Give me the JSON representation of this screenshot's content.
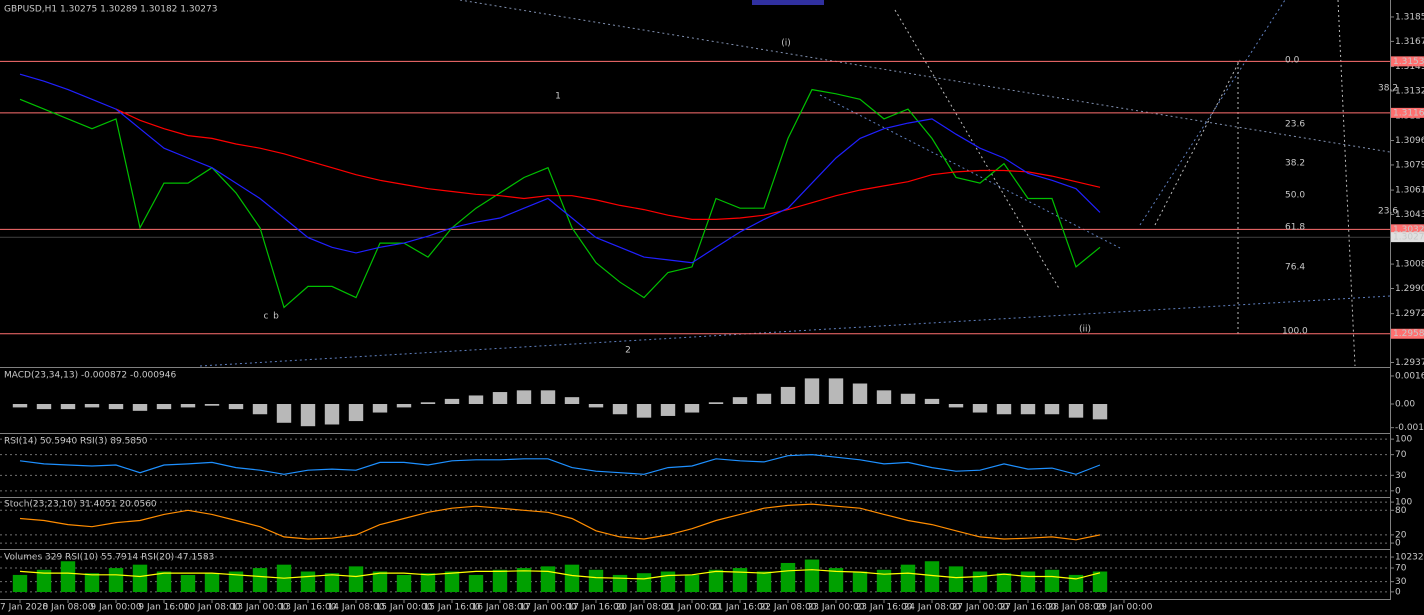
{
  "chart_data": [
    {
      "type": "line",
      "title": "GBPUSD,H1  1.30275 1.30289 1.30182 1.30273",
      "categories": [
        "7 Jan 2020",
        null,
        "8 Jan 08:00",
        null,
        "9 Jan 00:00",
        null,
        "9 Jan 16:00",
        null,
        "10 Jan 08:00",
        null,
        "13 Jan 00:00",
        null,
        "13 Jan 16:00",
        null,
        "14 Jan 08:00",
        null,
        "15 Jan 00:00",
        null,
        "15 Jan 16:00",
        null,
        "16 Jan 08:00",
        null,
        "17 Jan 00:00",
        null,
        "17 Jan 16:00",
        null,
        "20 Jan 08:00",
        null,
        "21 Jan 00:00",
        null,
        "21 Jan 16:00",
        null,
        "22 Jan 08:00",
        null,
        "23 Jan 00:00",
        null,
        "23 Jan 16:00",
        null,
        "24 Jan 08:00",
        null,
        "27 Jan 00:00",
        null,
        "27 Jan 16:00",
        null,
        "28 Jan 08:00",
        null,
        "29 Jan 00:00"
      ],
      "series": [
        {
          "color": "#00c000",
          "values": [
            1.3126,
            1.3119,
            1.3112,
            1.3105,
            1.3112,
            1.3034,
            1.3066,
            1.3066,
            1.3077,
            1.3059,
            1.3034,
            1.2977,
            1.2992,
            1.2992,
            1.2984,
            1.3023,
            1.3023,
            1.3013,
            1.3034,
            1.3048,
            1.3059,
            1.307,
            1.3077,
            1.3034,
            1.3009,
            1.2995,
            1.2984,
            1.3002,
            1.3006,
            1.3055,
            1.3048,
            1.3048,
            1.3098,
            1.3133,
            1.313,
            1.3126,
            1.3112,
            1.3119,
            1.3098,
            1.307,
            1.3066,
            1.308,
            1.3055,
            1.3055,
            1.3006,
            1.302,
            null
          ]
        },
        {
          "color": "#ff0000",
          "values": [
            null,
            null,
            null,
            null,
            1.3119,
            1.3111,
            1.3105,
            1.31,
            1.3098,
            1.3094,
            1.3091,
            1.3087,
            1.3082,
            1.3077,
            1.3072,
            1.3068,
            1.3065,
            1.3062,
            1.306,
            1.3058,
            1.3057,
            1.3055,
            1.3057,
            1.3057,
            1.3054,
            1.305,
            1.3047,
            1.3043,
            1.304,
            1.304,
            1.3041,
            1.3043,
            1.3047,
            1.3052,
            1.3057,
            1.3061,
            1.3064,
            1.3067,
            1.3072,
            1.3074,
            1.3075,
            1.3075,
            1.3074,
            1.3071,
            1.3067,
            1.3063,
            null
          ]
        },
        {
          "color": "#2020ff",
          "values": [
            1.3144,
            1.3139,
            1.3133,
            1.3126,
            1.3119,
            1.3105,
            1.3091,
            1.3084,
            1.3077,
            1.3066,
            1.3055,
            1.3041,
            1.3027,
            1.302,
            1.3016,
            1.302,
            1.3023,
            1.3028,
            1.3034,
            1.3038,
            1.3041,
            1.3048,
            1.3055,
            1.3041,
            1.3027,
            1.302,
            1.3013,
            1.3011,
            1.3009,
            1.302,
            1.3031,
            1.304,
            1.3048,
            1.3066,
            1.3084,
            1.3098,
            1.3105,
            1.3109,
            1.3112,
            1.3101,
            1.3091,
            1.3084,
            1.3073,
            1.3068,
            1.3062,
            1.3045,
            null
          ]
        }
      ],
      "ylim": [
        1.2935,
        1.3195
      ],
      "yticks": [
        {
          "value": 1.3185,
          "label": "1.31850"
        },
        1.31675,
        1.31495,
        {
          "value": 1.3132,
          "label": "1.31320"
        },
        {
          "value": 1.3114,
          "label": "1.31140"
        },
        1.30965,
        {
          "value": 1.3079,
          "label": "1.30790"
        },
        {
          "value": 1.3061,
          "label": "1.30610"
        },
        1.30435,
        {
          "value": 1.3008,
          "label": "1.30080"
        },
        1.29905,
        1.29725,
        1.29375
      ],
      "grid": false,
      "hlines": [
        1.31532,
        1.31163,
        1.30329,
        1.29581
      ],
      "hline_color": "#ff7070",
      "current_price": 1.30273,
      "fib_labels": [
        "0.0",
        "23.6",
        "38.2",
        "50.0",
        "61.8",
        "76.4",
        "100.0",
        "38.2",
        "23.6"
      ],
      "wave_labels": [
        "(i)",
        "1",
        "c",
        "b",
        "2",
        "(ii)"
      ]
    },
    {
      "type": "bar",
      "title": "MACD(23,34,13) -0.000872 -0.000946",
      "series": [
        {
          "color": "#b8b8b8",
          "values": [
            -0.0002,
            -0.0003,
            -0.0003,
            -0.0002,
            -0.0003,
            -0.0004,
            -0.0003,
            -0.0002,
            -0.0001,
            -0.0003,
            -0.0006,
            -0.0011,
            -0.0013,
            -0.0012,
            -0.001,
            -0.0005,
            -0.0002,
            0.0001,
            0.0003,
            0.0005,
            0.0007,
            0.0008,
            0.0008,
            0.0004,
            -0.0002,
            -0.0006,
            -0.0008,
            -0.0007,
            -0.0005,
            0.0001,
            0.0004,
            0.0006,
            0.001,
            0.0015,
            0.0015,
            0.0012,
            0.0008,
            0.0006,
            0.0003,
            -0.0002,
            -0.0005,
            -0.0006,
            -0.0006,
            -0.0006,
            -0.0008,
            -0.0009,
            null
          ]
        }
      ],
      "ylim": [
        -0.00164,
        0.00205
      ],
      "yticks": [
        0.001642,
        {
          "value": 0,
          "label": "0.00"
        },
        -0.001386
      ],
      "grid": false
    },
    {
      "type": "line",
      "title": "RSI(14) 50.5940  RSI(3) 89.5850",
      "series": [
        {
          "color": "#1e90ff",
          "values": [
            58,
            52,
            50,
            48,
            50,
            35,
            50,
            52,
            55,
            45,
            40,
            32,
            40,
            42,
            40,
            55,
            55,
            50,
            58,
            60,
            60,
            62,
            62,
            45,
            38,
            35,
            32,
            45,
            48,
            62,
            58,
            56,
            68,
            70,
            65,
            60,
            52,
            55,
            45,
            38,
            40,
            52,
            42,
            44,
            32,
            50,
            null
          ]
        }
      ],
      "ylim": [
        -10,
        108
      ],
      "yticks": [
        100,
        70,
        30,
        0
      ],
      "grid": true
    },
    {
      "type": "line",
      "title": "Stoch(23,23,10) 31.4051 20.0560",
      "series": [
        {
          "color": "#ff8c00",
          "values": [
            60,
            55,
            45,
            40,
            50,
            55,
            70,
            80,
            70,
            55,
            40,
            15,
            10,
            12,
            20,
            45,
            60,
            75,
            85,
            90,
            85,
            80,
            75,
            60,
            30,
            15,
            10,
            20,
            35,
            55,
            70,
            85,
            92,
            95,
            90,
            85,
            70,
            55,
            45,
            30,
            15,
            10,
            12,
            15,
            8,
            20,
            null
          ]
        }
      ],
      "ylim": [
        -12,
        110
      ],
      "yticks": [
        100,
        80,
        20,
        0
      ],
      "grid": true
    },
    {
      "type": "bar",
      "title": "Volumes 329  RSI(10) 55.7914  RSI(20) 47.1583",
      "series": [
        {
          "color": "#00a000",
          "values": [
            5000,
            6500,
            9000,
            5500,
            7000,
            8000,
            6000,
            5000,
            5500,
            6000,
            7000,
            8000,
            6000,
            5500,
            7500,
            6000,
            5000,
            5500,
            6000,
            5000,
            6500,
            7000,
            7500,
            8000,
            6500,
            5000,
            5500,
            6000,
            5000,
            6500,
            7000,
            6000,
            8500,
            9500,
            7000,
            6000,
            6500,
            8000,
            9000,
            7500,
            6000,
            5500,
            6000,
            6500,
            5000,
            6000,
            null
          ]
        },
        {
          "color": "#ffff00",
          "axis": "y2",
          "values": [
            60,
            55,
            55,
            50,
            50,
            45,
            55,
            55,
            55,
            50,
            45,
            40,
            45,
            50,
            45,
            55,
            55,
            50,
            55,
            60,
            60,
            62,
            60,
            48,
            42,
            40,
            38,
            48,
            50,
            60,
            58,
            55,
            62,
            65,
            60,
            58,
            52,
            55,
            48,
            42,
            45,
            52,
            45,
            45,
            38,
            56,
            null
          ]
        }
      ],
      "ylim": [
        -1750,
        12000
      ],
      "yticks": [
        10232
      ],
      "y2lim": [
        -18,
        120
      ],
      "y2ticks": [
        70,
        30,
        0
      ],
      "grid": true
    }
  ]
}
